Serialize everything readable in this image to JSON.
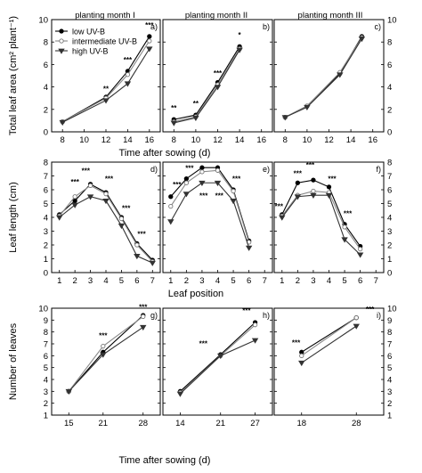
{
  "figure": {
    "month_titles": [
      "planting month I",
      "planting month II",
      "planting month III"
    ],
    "legend": [
      "low UV-B",
      "intermediate UV-B",
      "high UV-B"
    ],
    "series_colors": [
      "#000000",
      "#999999",
      "#333333"
    ]
  },
  "chart_data": [
    {
      "type": "line",
      "ylabel": "Total leaf area (cm² plant⁻¹)",
      "xlabel": "Time after sowing (d)",
      "xlim": [
        7,
        17
      ],
      "ylim": [
        0,
        10
      ],
      "xticks": [
        "8",
        "10",
        "12",
        "14",
        "16"
      ],
      "yticks_left": [
        "0",
        "2",
        "4",
        "6",
        "8",
        "10"
      ],
      "yticks_right": [
        "0",
        "2",
        "4",
        "6",
        "8",
        "10"
      ],
      "panels": [
        {
          "label": "a)",
          "title": "planting month I",
          "x": [
            8,
            12,
            14,
            16
          ],
          "series": [
            {
              "name": "low UV-B",
              "values": [
                0.9,
                3.1,
                5.4,
                8.5
              ]
            },
            {
              "name": "intermediate UV-B",
              "values": [
                0.9,
                3.0,
                5.1,
                8.1
              ]
            },
            {
              "name": "high UV-B",
              "values": [
                0.85,
                2.8,
                4.3,
                7.4
              ]
            }
          ],
          "annotations": [
            {
              "x": 12,
              "y": 3.6,
              "text": "**"
            },
            {
              "x": 14,
              "y": 6.2,
              "text": "***"
            },
            {
              "x": 16,
              "y": 9.3,
              "text": "***"
            }
          ]
        },
        {
          "label": "b)",
          "title": "planting month II",
          "x": [
            8,
            10,
            12,
            14
          ],
          "series": [
            {
              "name": "low UV-B",
              "values": [
                1.1,
                1.5,
                4.4,
                7.6
              ]
            },
            {
              "name": "intermediate UV-B",
              "values": [
                0.9,
                1.35,
                4.2,
                7.4
              ]
            },
            {
              "name": "high UV-B",
              "values": [
                0.8,
                1.25,
                4.0,
                7.3
              ]
            }
          ],
          "annotations": [
            {
              "x": 8,
              "y": 1.9,
              "text": "**"
            },
            {
              "x": 10,
              "y": 2.3,
              "text": "**"
            },
            {
              "x": 12,
              "y": 5.0,
              "text": "***"
            },
            {
              "x": 14,
              "y": 8.4,
              "text": "*"
            }
          ]
        },
        {
          "label": "c)",
          "title": "planting month III",
          "x": [
            8,
            10,
            13,
            15
          ],
          "series": [
            {
              "name": "low UV-B",
              "values": [
                1.3,
                2.3,
                5.2,
                8.5
              ]
            },
            {
              "name": "intermediate UV-B",
              "values": [
                1.3,
                2.3,
                5.3,
                8.4
              ]
            },
            {
              "name": "high UV-B",
              "values": [
                1.3,
                2.2,
                5.1,
                8.3
              ]
            }
          ],
          "annotations": []
        }
      ]
    },
    {
      "type": "line",
      "ylabel": "Leaf length (cm)",
      "xlabel": "Leaf position",
      "ylim": [
        0,
        8
      ],
      "yticks_left": [
        "0",
        "1",
        "2",
        "3",
        "4",
        "5",
        "6",
        "7",
        "8"
      ],
      "yticks_right": [
        "0",
        "1",
        "2",
        "3",
        "4",
        "5",
        "6",
        "7",
        "8"
      ],
      "panels": [
        {
          "label": "d)",
          "xlim": [
            0.5,
            7.5
          ],
          "xticks": [
            "1",
            "2",
            "3",
            "4",
            "5",
            "6",
            "7"
          ],
          "x": [
            1,
            2,
            3,
            4,
            5,
            6,
            7
          ],
          "series": [
            {
              "name": "low UV-B",
              "values": [
                4.2,
                5.2,
                6.4,
                5.8,
                4.0,
                2.1,
                0.9
              ]
            },
            {
              "name": "intermediate UV-B",
              "values": [
                4.1,
                5.5,
                6.3,
                5.7,
                3.9,
                2.0,
                0.8
              ]
            },
            {
              "name": "high UV-B",
              "values": [
                4.0,
                4.9,
                5.5,
                5.2,
                3.4,
                1.2,
                0.7
              ]
            }
          ],
          "annotations": [
            {
              "x": 2,
              "y": 6.4,
              "text": "***"
            },
            {
              "x": 2.7,
              "y": 7.2,
              "text": "***"
            },
            {
              "x": 4.2,
              "y": 6.6,
              "text": "***"
            },
            {
              "x": 5.3,
              "y": 4.5,
              "text": "***"
            },
            {
              "x": 6.3,
              "y": 2.6,
              "text": "***"
            }
          ]
        },
        {
          "label": "e)",
          "xlim": [
            0.5,
            7.5
          ],
          "xticks": [
            "1",
            "2",
            "3",
            "4",
            "5",
            "6",
            "7"
          ],
          "x": [
            1,
            2,
            3,
            4,
            5,
            6
          ],
          "series": [
            {
              "name": "low UV-B",
              "values": [
                5.5,
                6.8,
                7.6,
                7.6,
                6.0,
                2.3
              ]
            },
            {
              "name": "intermediate UV-B",
              "values": [
                4.8,
                6.5,
                7.3,
                7.4,
                5.9,
                2.2
              ]
            },
            {
              "name": "high UV-B",
              "values": [
                3.7,
                5.7,
                6.5,
                6.5,
                5.2,
                1.8
              ]
            }
          ],
          "annotations": [
            {
              "x": 1.4,
              "y": 6.2,
              "text": "***"
            },
            {
              "x": 2.2,
              "y": 7.4,
              "text": "***"
            },
            {
              "x": 3.1,
              "y": 5.4,
              "text": "***"
            },
            {
              "x": 4.1,
              "y": 5.4,
              "text": "***"
            },
            {
              "x": 5.2,
              "y": 6.6,
              "text": "***"
            }
          ]
        },
        {
          "label": "f)",
          "xlim": [
            0.5,
            7.5
          ],
          "xticks": [
            "1",
            "2",
            "3",
            "4",
            "5",
            "6",
            "7"
          ],
          "x": [
            1,
            2,
            3,
            4,
            5,
            6
          ],
          "series": [
            {
              "name": "low UV-B",
              "values": [
                4.2,
                6.5,
                6.7,
                6.2,
                3.5,
                1.9
              ]
            },
            {
              "name": "intermediate UV-B",
              "values": [
                4.1,
                5.6,
                5.9,
                5.8,
                3.3,
                1.7
              ]
            },
            {
              "name": "high UV-B",
              "values": [
                4.0,
                5.5,
                5.6,
                5.6,
                2.4,
                1.3
              ]
            }
          ],
          "annotations": [
            {
              "x": 0.8,
              "y": 4.6,
              "text": "***"
            },
            {
              "x": 2.0,
              "y": 7.0,
              "text": "***"
            },
            {
              "x": 2.8,
              "y": 7.6,
              "text": "***"
            },
            {
              "x": 4.2,
              "y": 6.6,
              "text": "***"
            },
            {
              "x": 5.2,
              "y": 4.1,
              "text": "***"
            }
          ]
        }
      ]
    },
    {
      "type": "line",
      "ylabel": "Number of leaves",
      "xlabel": "Time after sowing (d)",
      "ylim": [
        1,
        10
      ],
      "yticks_left": [
        "1",
        "2",
        "3",
        "4",
        "5",
        "6",
        "7",
        "8",
        "9",
        "10"
      ],
      "yticks_right": [
        "1",
        "2",
        "3",
        "4",
        "5",
        "6",
        "7",
        "8",
        "9",
        "10"
      ],
      "panels": [
        {
          "label": "g)",
          "xlim": [
            12,
            31
          ],
          "xticks": [
            "15",
            "21",
            "28"
          ],
          "x": [
            15,
            21,
            28
          ],
          "series": [
            {
              "name": "low UV-B",
              "values": [
                3.0,
                6.3,
                9.4
              ]
            },
            {
              "name": "intermediate UV-B",
              "values": [
                3.0,
                6.8,
                9.3
              ]
            },
            {
              "name": "high UV-B",
              "values": [
                3.0,
                6.1,
                8.4
              ]
            }
          ],
          "annotations": [
            {
              "x": 21,
              "y": 7.5,
              "text": "***"
            },
            {
              "x": 28,
              "y": 9.9,
              "text": "***"
            }
          ]
        },
        {
          "label": "h)",
          "xlim": [
            11,
            30
          ],
          "xticks": [
            "14",
            "21",
            "27"
          ],
          "x": [
            14,
            21,
            27
          ],
          "series": [
            {
              "name": "low UV-B",
              "values": [
                3.0,
                6.1,
                8.8
              ]
            },
            {
              "name": "intermediate UV-B",
              "values": [
                2.9,
                6.0,
                8.6
              ]
            },
            {
              "name": "high UV-B",
              "values": [
                2.8,
                6.0,
                7.3
              ]
            }
          ],
          "annotations": [
            {
              "x": 18,
              "y": 6.8,
              "text": "***"
            },
            {
              "x": 25.5,
              "y": 9.6,
              "text": "***"
            }
          ]
        },
        {
          "label": "i)",
          "xlim": [
            13,
            33
          ],
          "xticks": [
            "18",
            "28"
          ],
          "x": [
            18,
            28
          ],
          "series": [
            {
              "name": "low UV-B",
              "values": [
                6.3,
                9.2
              ]
            },
            {
              "name": "intermediate UV-B",
              "values": [
                6.0,
                9.2
              ]
            },
            {
              "name": "high UV-B",
              "values": [
                5.4,
                8.5
              ]
            }
          ],
          "annotations": [
            {
              "x": 17,
              "y": 6.9,
              "text": "***"
            },
            {
              "x": 30.5,
              "y": 9.7,
              "text": "***"
            }
          ]
        }
      ]
    }
  ]
}
